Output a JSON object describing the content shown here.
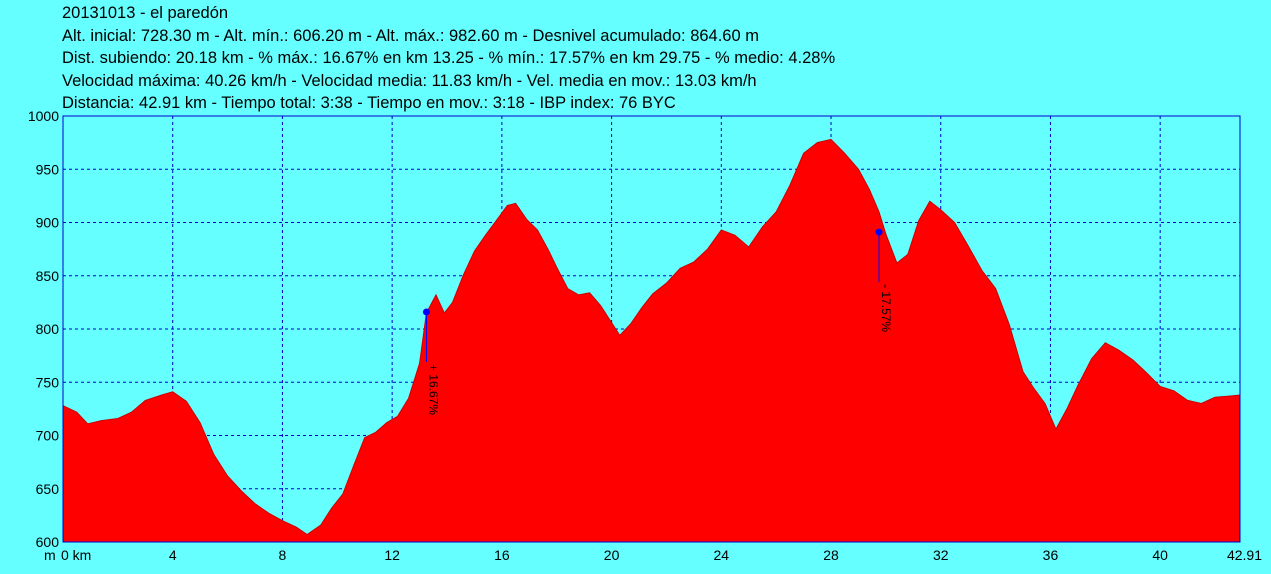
{
  "header": {
    "line1": "20131013 - el paredón",
    "line2": "Alt. inicial: 728.30 m - Alt. mín.: 606.20 m - Alt. máx.: 982.60 m - Desnivel acumulado: 864.60 m",
    "line3": "Dist. subiendo: 20.18 km - % máx.: 16.67% en km 13.25 - % mín.: 17.57% en km 29.75 - % medio: 4.28%",
    "line4": "Velocidad máxima: 40.26 km/h - Velocidad media: 11.83 km/h - Vel. media en mov.: 13.03 km/h",
    "line5": "Distancia: 42.91 km - Tiempo total: 3:38 - Tiempo en mov.: 3:18 - IBP index: 76 BYC"
  },
  "colors": {
    "background": "#66ffff",
    "fill": "#ff0000",
    "grid": "#0000cc",
    "marker": "#0000ff"
  },
  "chart_data": {
    "type": "area",
    "xlim": [
      0,
      42.91
    ],
    "ylim": [
      600,
      1000
    ],
    "x_ticks": [
      "0 km",
      "4",
      "8",
      "12",
      "16",
      "20",
      "24",
      "28",
      "32",
      "36",
      "40",
      "42.91"
    ],
    "x_tick_values": [
      0,
      4,
      8,
      12,
      16,
      20,
      24,
      28,
      32,
      36,
      40,
      42.91
    ],
    "y_ticks": [
      600,
      650,
      700,
      750,
      800,
      850,
      900,
      950,
      1000
    ],
    "y_axis_unit": "m",
    "grid": true,
    "series": [
      {
        "x": [
          0,
          0.5,
          0.9,
          1.4,
          2,
          2.5,
          3,
          3.6,
          4,
          4.5,
          5,
          5.5,
          6,
          6.5,
          7,
          7.5,
          8,
          8.5,
          8.9,
          9.4,
          9.8,
          10.2,
          10.6,
          11,
          11.4,
          11.8,
          12.2,
          12.6,
          13,
          13.25,
          13.6,
          13.9,
          14.2,
          14.6,
          15,
          15.4,
          15.8,
          16.2,
          16.5,
          16.9,
          17.3,
          17.7,
          18,
          18.4,
          18.8,
          19.2,
          19.6,
          20,
          20.3,
          20.7,
          21.1,
          21.5,
          22,
          22.5,
          23,
          23.5,
          24,
          24.5,
          25,
          25.5,
          26,
          26.5,
          27,
          27.5,
          28,
          28.5,
          29,
          29.4,
          29.75,
          30,
          30.4,
          30.8,
          31.2,
          31.6,
          32,
          32.5,
          33,
          33.5,
          34,
          34.5,
          35,
          35.4,
          35.8,
          36.2,
          36.6,
          37,
          37.5,
          38,
          38.5,
          39,
          39.5,
          40,
          40.5,
          41,
          41.5,
          42,
          42.5,
          42.91
        ],
        "y": [
          728,
          722,
          711,
          714,
          716,
          722,
          733,
          738,
          741,
          732,
          712,
          682,
          662,
          648,
          636,
          627,
          620,
          614,
          607,
          616,
          632,
          645,
          672,
          698,
          703,
          712,
          718,
          735,
          768,
          815,
          832,
          815,
          825,
          851,
          873,
          888,
          902,
          916,
          918,
          903,
          893,
          874,
          858,
          838,
          832,
          834,
          822,
          806,
          794,
          805,
          820,
          833,
          843,
          857,
          863,
          875,
          893,
          888,
          877,
          896,
          910,
          935,
          965,
          975,
          978,
          965,
          950,
          931,
          910,
          889,
          862,
          870,
          902,
          920,
          912,
          900,
          878,
          855,
          838,
          804,
          760,
          744,
          730,
          706,
          725,
          747,
          772,
          787,
          780,
          771,
          759,
          746,
          742,
          733,
          730,
          736,
          737,
          738
        ]
      }
    ],
    "annotations": [
      {
        "x": 13.25,
        "y": 816,
        "label": "+ 16.67%"
      },
      {
        "x": 29.75,
        "y": 891,
        "label": "- 17.57%"
      }
    ]
  }
}
